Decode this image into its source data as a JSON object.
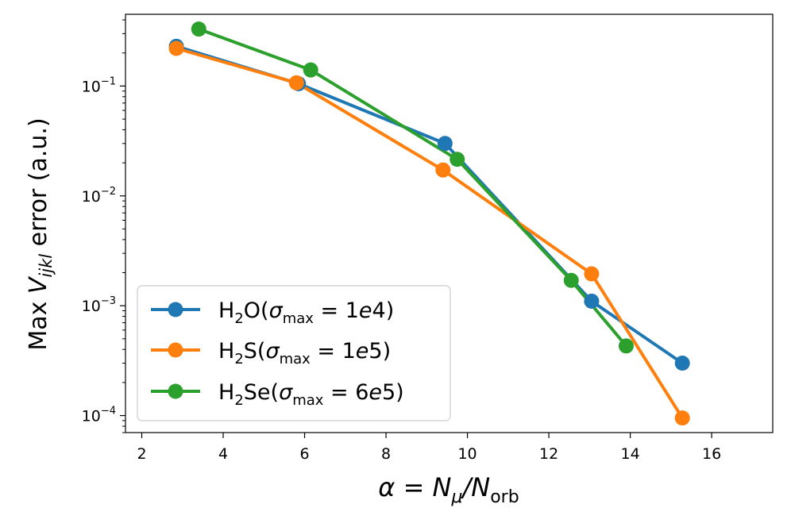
{
  "chart_data": {
    "type": "line",
    "xlabel": "α = N_μ/N_orb",
    "ylabel": "Max V_ijkl error (a.u.)",
    "xlim": [
      1.6,
      17.5
    ],
    "ylim": [
      7e-05,
      0.45
    ],
    "yscale": "log",
    "grid": false,
    "legend_position": "lower-left",
    "x_ticks": [
      2,
      4,
      6,
      8,
      10,
      12,
      14,
      16
    ],
    "y_major_ticks": [
      0.0001,
      0.001,
      0.01,
      0.1
    ],
    "y_tick_labels": [
      {
        "base": "10",
        "exp": "−4"
      },
      {
        "base": "10",
        "exp": "−3"
      },
      {
        "base": "10",
        "exp": "−2"
      },
      {
        "base": "10",
        "exp": "−1"
      }
    ],
    "series": [
      {
        "name": "H₂O(σmax = 1e4)",
        "color": "#1f77b4",
        "x": [
          2.85,
          5.85,
          9.45,
          13.05,
          15.28
        ],
        "y": [
          0.23,
          0.105,
          0.03,
          0.0011,
          0.0003
        ]
      },
      {
        "name": "H₂S(σmax = 1e5)",
        "color": "#ff7f0e",
        "x": [
          2.85,
          5.8,
          9.4,
          13.05,
          15.28
        ],
        "y": [
          0.22,
          0.107,
          0.0172,
          0.00195,
          9.5e-05
        ]
      },
      {
        "name": "H₂Se(σmax = 6e5)",
        "color": "#2ca02c",
        "x": [
          3.4,
          6.15,
          9.75,
          12.55,
          13.9
        ],
        "y": [
          0.33,
          0.14,
          0.0215,
          0.0017,
          0.00043
        ]
      }
    ],
    "legend": [
      {
        "formula_a": "H",
        "sub": "2",
        "formula_b": "O",
        "sigma": "σ",
        "sigma_sub": "max",
        "value": " = 1",
        "value_it": "e",
        "value_end": "4)"
      },
      {
        "formula_a": "H",
        "sub": "2",
        "formula_b": "S",
        "sigma": "σ",
        "sigma_sub": "max",
        "value": " = 1",
        "value_it": "e",
        "value_end": "5)"
      },
      {
        "formula_a": "H",
        "sub": "2",
        "formula_b": "Se",
        "sigma": "σ",
        "sigma_sub": "max",
        "value": " = 6",
        "value_it": "e",
        "value_end": "5)"
      }
    ],
    "xlabel_parts": {
      "alpha": "α",
      "eq": " = ",
      "n1": "N",
      "n1_sub": "μ",
      "slash": "/",
      "n2": "N",
      "n2_sub": "orb"
    },
    "ylabel_parts": {
      "pre": "Max ",
      "v": "V",
      "v_sub": "ijkl",
      "post": " error (a.u.)"
    }
  }
}
